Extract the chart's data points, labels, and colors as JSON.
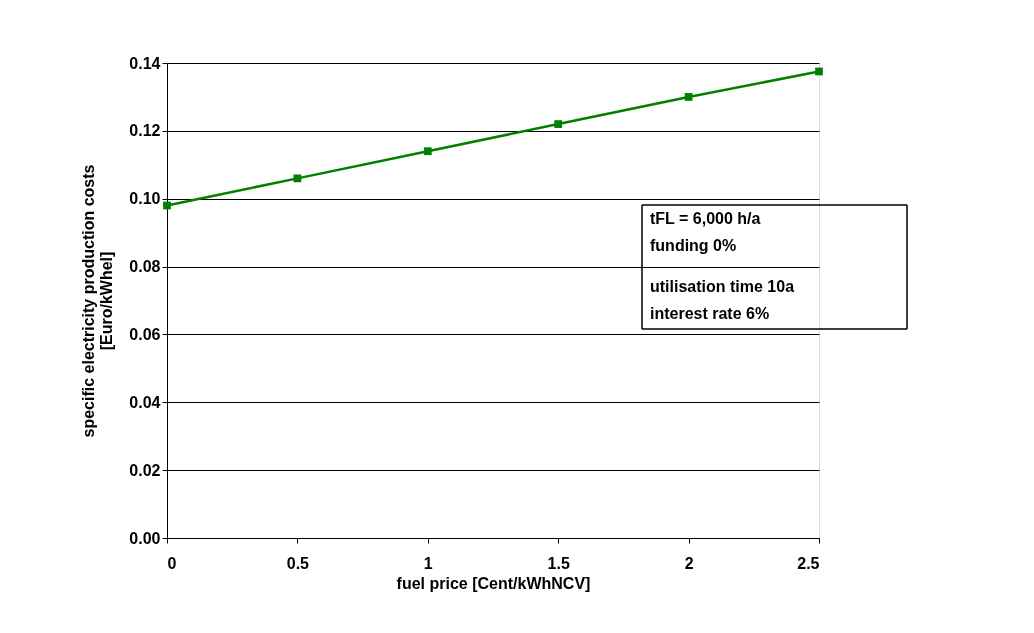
{
  "chart_data": {
    "type": "line",
    "xlabel": "fuel price [Cent/kWhNCV]",
    "ylabel": "specific electricity production costs\n[Euro/kWhel]",
    "x": [
      0,
      0.5,
      1,
      1.5,
      2,
      2.5
    ],
    "series": [
      {
        "color": "#008000",
        "values": [
          0.098,
          0.106,
          0.114,
          0.122,
          0.13,
          0.1375
        ]
      }
    ],
    "xlim": [
      0,
      2.5
    ],
    "xticks": [
      0,
      0.5,
      1,
      1.5,
      2,
      2.5
    ],
    "ylim": [
      0,
      0.14
    ],
    "yticks": [
      {
        "value": 0,
        "label": "0.00"
      },
      {
        "value": 0.02,
        "label": "0.02"
      },
      {
        "value": 0.04,
        "label": "0.04"
      },
      {
        "value": 0.06,
        "label": "0.06"
      },
      {
        "value": 0.08,
        "label": "0.08"
      },
      {
        "value": 0.1,
        "label": "0.10"
      },
      {
        "value": 0.12,
        "label": "0.12"
      },
      {
        "value": 0.14,
        "label": "0.14"
      }
    ],
    "grid": "y",
    "marker": "square",
    "line_style": "solid",
    "annotations": [
      "tFL = 6,000 h/a",
      "funding 0%",
      "utilisation time 10a",
      "interest rate 6%"
    ]
  }
}
